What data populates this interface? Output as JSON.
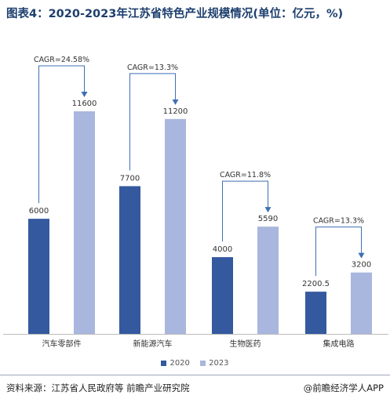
{
  "title": "图表4：2020-2023年江苏省特色产业规模情况(单位：亿元，%)",
  "colors": {
    "2020": "#34599f",
    "2023": "#a9b6dd",
    "bracket": "#3d6fb4",
    "axis": "#bcbcbc"
  },
  "chart_data": {
    "type": "bar",
    "categories": [
      "汽车零部件",
      "新能源汽车",
      "生物医药",
      "集成电路"
    ],
    "series": [
      {
        "name": "2020",
        "values": [
          6000,
          7700,
          4000,
          2200.5
        ]
      },
      {
        "name": "2023",
        "values": [
          11600,
          11200,
          5590,
          3200
        ]
      }
    ],
    "value_labels": [
      [
        "6000",
        "7700",
        "4000",
        "2200.5"
      ],
      [
        "11600",
        "11200",
        "5590",
        "3200"
      ]
    ],
    "annotations": [
      "CAGR=24.58%",
      "CAGR=13.3%",
      "CAGR=11.8%",
      "CAGR=13.3%"
    ],
    "ylim": [
      0,
      12500
    ],
    "grid": false,
    "legend_position": "bottom"
  },
  "footer": {
    "source": "资料来源：江苏省人民政府等 前瞻产业研究院",
    "credit": "@前瞻经济学人APP"
  }
}
